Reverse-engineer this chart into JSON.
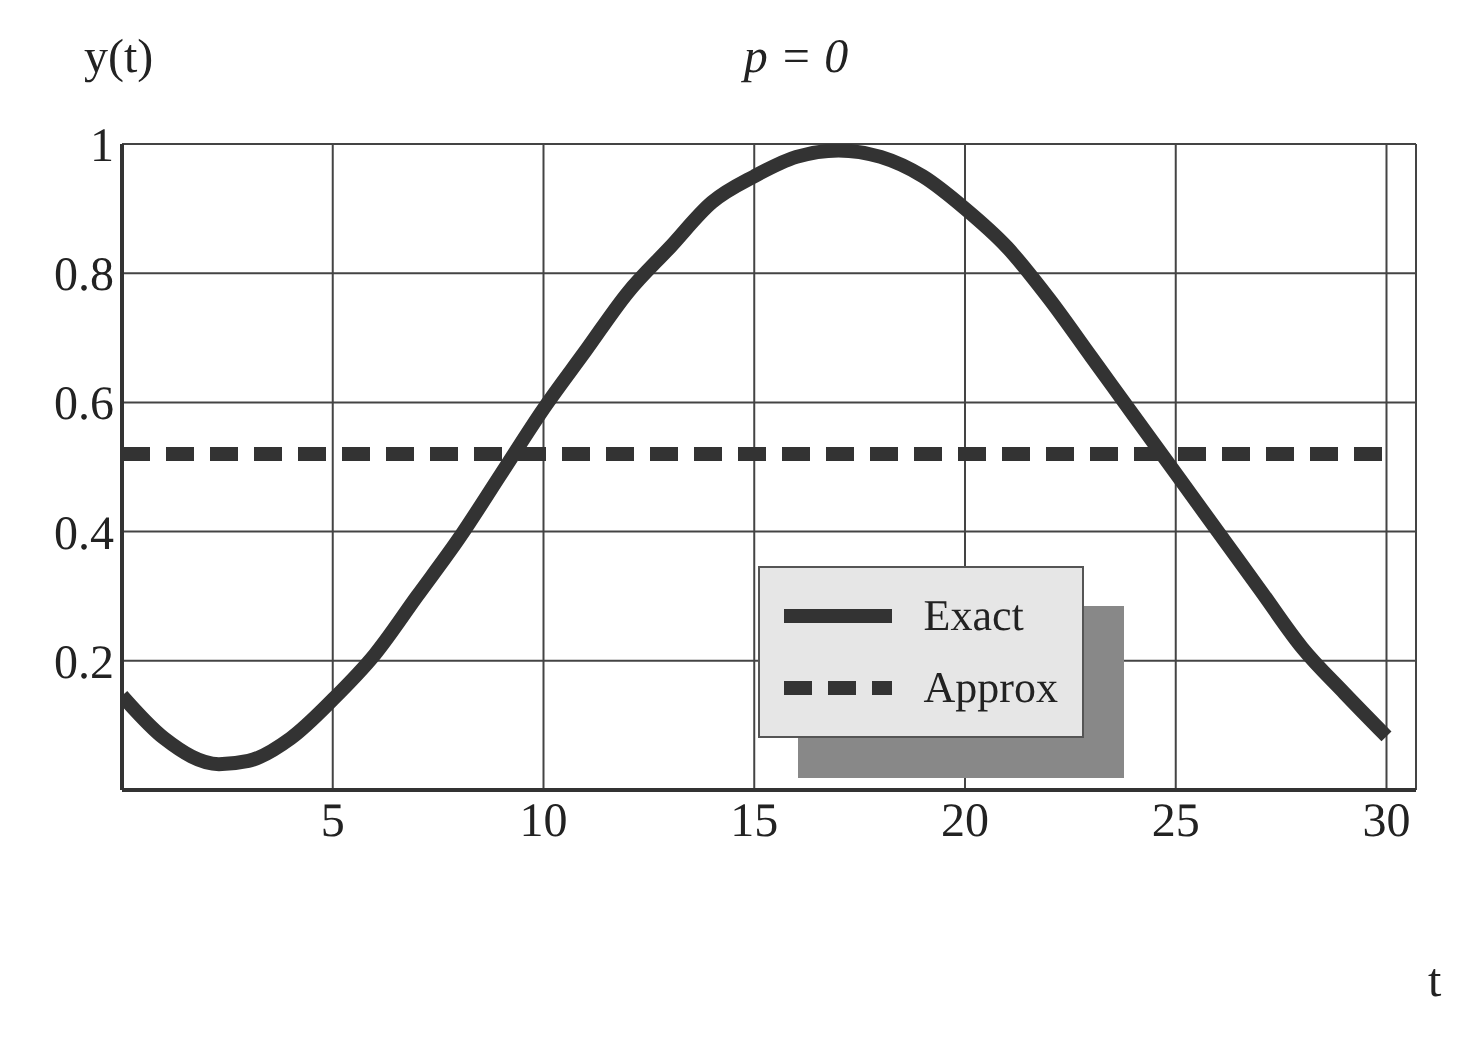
{
  "chart_data": {
    "type": "line",
    "title": "p = 0",
    "xlabel": "t",
    "ylabel": "y(t)",
    "xlim": [
      0,
      30.7
    ],
    "xticks": [
      5,
      10,
      15,
      20,
      25,
      30
    ],
    "ylim": [
      0,
      1
    ],
    "yticks": [
      0.2,
      0.4,
      0.6,
      0.8,
      1
    ],
    "grid": true,
    "legend": "bottom right",
    "marker": "none",
    "series": [
      {
        "name": "Exact",
        "color": "#333333",
        "line_style": "solid",
        "x": [
          0,
          1,
          2.3,
          3,
          4,
          5,
          6,
          7,
          8,
          9,
          10,
          11,
          12,
          13,
          14,
          15,
          16,
          17,
          18,
          19,
          20,
          21,
          22,
          23,
          24,
          25,
          26,
          27,
          28,
          29,
          30
        ],
        "values": [
          0.146,
          0.08,
          0.04,
          0.045,
          0.08,
          0.14,
          0.21,
          0.3,
          0.39,
          0.49,
          0.59,
          0.68,
          0.77,
          0.84,
          0.91,
          0.95,
          0.98,
          0.99,
          0.98,
          0.95,
          0.9,
          0.84,
          0.76,
          0.67,
          0.58,
          0.49,
          0.4,
          0.31,
          0.22,
          0.15,
          0.083
        ]
      },
      {
        "name": "Approx",
        "color": "#333333",
        "line_style": "dashed",
        "x": [
          0,
          30
        ],
        "values": [
          0.52,
          0.52
        ]
      }
    ]
  }
}
